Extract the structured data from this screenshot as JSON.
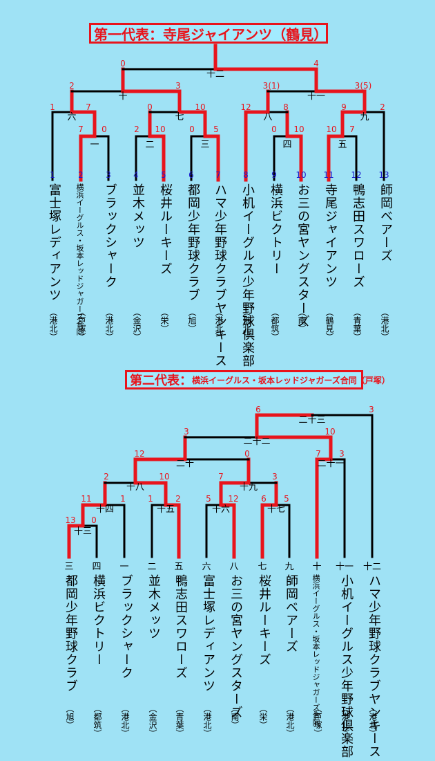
{
  "section1": {
    "title": "第一代表：寺尾ジャイアンツ（鶴見）",
    "teams": [
      {
        "seed": "1",
        "name": "富士塚レディアンツ",
        "area": "（港北）"
      },
      {
        "seed": "2",
        "name": "横浜イーグルス・坂本レッドジャガーズ合同",
        "area": "（戸塚）",
        "small": true
      },
      {
        "seed": "3",
        "name": "ブラックシャーク",
        "area": "（港北）"
      },
      {
        "seed": "4",
        "name": "並木メッツ",
        "area": "（金沢）"
      },
      {
        "seed": "5",
        "name": "桜井ルーキーズ",
        "area": "（栄）"
      },
      {
        "seed": "6",
        "name": "都岡少年野球クラブ",
        "area": "（旭）"
      },
      {
        "seed": "7",
        "name": "ハマ少年野球クラブヤンキース",
        "area": "（港北）"
      },
      {
        "seed": "8",
        "name": "小机イーグルス少年野球倶楽部",
        "area": "（港北）"
      },
      {
        "seed": "9",
        "name": "横浜ビクトリー",
        "area": "（都筑）"
      },
      {
        "seed": "10",
        "name": "お三の宮ヤングスターズ",
        "area": "（南）"
      },
      {
        "seed": "11",
        "name": "寺尾ジャイアンツ",
        "area": "（鶴見）"
      },
      {
        "seed": "12",
        "name": "鴨志田スワローズ",
        "area": "（青葉）"
      },
      {
        "seed": "13",
        "name": "師岡ベアーズ",
        "area": "（港北）"
      }
    ],
    "matches": [
      "一",
      "二",
      "三",
      "四",
      "五",
      "六",
      "七",
      "八",
      "九",
      "十",
      "十一",
      "十二"
    ],
    "scores": [
      "1",
      "7",
      "7",
      "0",
      "0",
      "2",
      "10",
      "0",
      "5",
      "10",
      "12",
      "8",
      "0",
      "10",
      "9",
      "10",
      "7",
      "2",
      "2",
      "3",
      "3(1)",
      "3(5)",
      "0",
      "4"
    ]
  },
  "section2": {
    "title": "第二代表：",
    "title_sub": "横浜イーグルス・坂本レッドジャガーズ合同（戸塚）",
    "teams": [
      {
        "num": "三",
        "name": "都岡少年野球クラブ",
        "area": "（旭）"
      },
      {
        "num": "四",
        "name": "横浜ビクトリー",
        "area": "（都筑）"
      },
      {
        "num": "一",
        "name": "ブラックシャーク",
        "area": "（港北）"
      },
      {
        "num": "二",
        "name": "並木メッツ",
        "area": "（金沢）"
      },
      {
        "num": "五",
        "name": "鴨志田スワローズ",
        "area": "（青葉）"
      },
      {
        "num": "六",
        "name": "富士塚レディアンツ",
        "area": "（港北）"
      },
      {
        "num": "八",
        "name": "お三の宮ヤングスターズ",
        "area": "（南）"
      },
      {
        "num": "七",
        "name": "桜井ルーキーズ",
        "area": "（栄）"
      },
      {
        "num": "九",
        "name": "師岡ベアーズ",
        "area": "（港北）"
      },
      {
        "num": "十",
        "name": "横浜イーグルス・坂本レッドジャガーズ合同",
        "area": "（戸塚）",
        "small": true
      },
      {
        "num": "十一",
        "name": "小机イーグルス少年野球倶楽部",
        "area": "（港北）"
      },
      {
        "num": "十二",
        "name": "ハマ少年野球クラブヤンキース",
        "area": "（港北）"
      }
    ],
    "matches": [
      "十三",
      "十四",
      "十五",
      "十六",
      "十七",
      "十八",
      "十九",
      "二十",
      "二十一",
      "二十二",
      "二十三"
    ],
    "scores": [
      "13",
      "0",
      "11",
      "1",
      "1",
      "2",
      "5",
      "12",
      "6",
      "5",
      "2",
      "10",
      "7",
      "3",
      "12",
      "0",
      "7",
      "3",
      "3",
      "10",
      "6",
      "3"
    ]
  },
  "colors": {
    "win": "#e8141c",
    "line": "#000000",
    "background": "#9fe2f5",
    "seed": "#1a1acc"
  }
}
